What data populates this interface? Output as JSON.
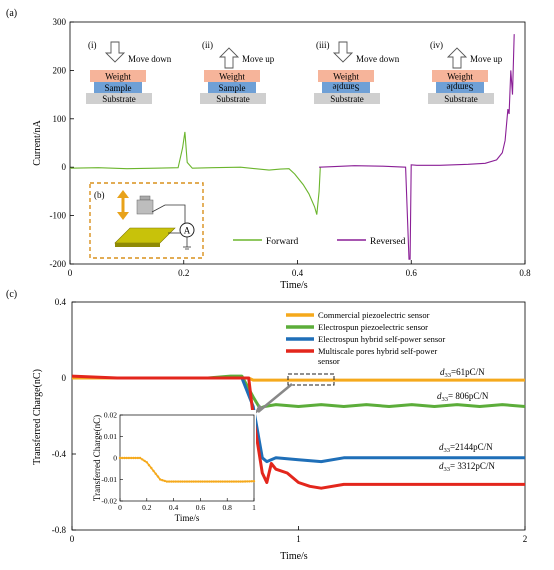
{
  "panels": {
    "a": {
      "label": "(a)"
    },
    "b": {
      "label": "(b)",
      "meter_symbol": "A"
    },
    "c": {
      "label": "(c)"
    }
  },
  "stages": [
    {
      "label": "(i)",
      "direction": "Move down",
      "arrow": "down-arrow",
      "layers": [
        "Weight",
        "Sample",
        "Substrate"
      ],
      "sample_flipped": false
    },
    {
      "label": "(ii)",
      "direction": "Move up",
      "arrow": "up-arrow",
      "layers": [
        "Weight",
        "Sample",
        "Substrate"
      ],
      "sample_flipped": false
    },
    {
      "label": "(iii)",
      "direction": "Move down",
      "arrow": "down-arrow",
      "layers": [
        "Weight",
        "Sample",
        "Substrate"
      ],
      "sample_flipped": true
    },
    {
      "label": "(iv)",
      "direction": "Move up",
      "arrow": "up-arrow",
      "layers": [
        "Weight",
        "Sample",
        "Substrate"
      ],
      "sample_flipped": true
    }
  ],
  "chart_data": [
    {
      "type": "line",
      "panel": "(a)",
      "xlabel": "Time/s",
      "ylabel": "Current/nA",
      "xlim": [
        0,
        0.8
      ],
      "ylim": [
        -200,
        300
      ],
      "xticks": [
        "0",
        "0.2",
        "0.4",
        "0.6",
        "0.8"
      ],
      "yticks": [
        "-200",
        "-100",
        "0",
        "100",
        "200",
        "300"
      ],
      "grid": false,
      "legend_position": "bottom-right",
      "colors": {
        "Forward": "#6bb52d",
        "Reversed": "#8a1f96"
      },
      "series": [
        {
          "name": "Forward",
          "x": [
            0,
            0.05,
            0.1,
            0.15,
            0.19,
            0.198,
            0.202,
            0.206,
            0.215,
            0.25,
            0.3,
            0.35,
            0.37,
            0.385,
            0.395,
            0.41,
            0.42,
            0.43,
            0.434,
            0.438,
            0.44
          ],
          "y": [
            -2,
            -1,
            -3,
            -2,
            -1,
            40,
            73,
            10,
            -2,
            -1,
            0,
            -6,
            -4,
            -3,
            -14,
            -36,
            -55,
            -82,
            -98,
            -50,
            0
          ]
        },
        {
          "name": "Reversed",
          "x": [
            0.438,
            0.46,
            0.5,
            0.55,
            0.59,
            0.596,
            0.598,
            0.6,
            0.61,
            0.65,
            0.7,
            0.73,
            0.75,
            0.76,
            0.765,
            0.77,
            0.772,
            0.775,
            0.778,
            0.781
          ],
          "y": [
            0,
            1,
            3,
            2,
            0,
            -190,
            -190,
            5,
            4,
            4,
            6,
            8,
            15,
            30,
            55,
            120,
            110,
            200,
            150,
            275
          ]
        }
      ]
    },
    {
      "type": "line",
      "panel": "(c)",
      "xlabel": "Time/s",
      "ylabel": "Transferred Charge(nC)",
      "xlim": [
        0,
        2
      ],
      "ylim": [
        -0.8,
        0.4
      ],
      "xticks": [
        "0",
        "1",
        "2"
      ],
      "yticks": [
        "-0.8",
        "-0.4",
        "0",
        "0.4"
      ],
      "grid": false,
      "legend_position": "top-right",
      "series": [
        {
          "name": "Commercial piezoelectric sensor",
          "color": "#f5a91c",
          "annotation": "61pC/N",
          "x": [
            0,
            0.3,
            0.6,
            0.78,
            0.8,
            0.9,
            1.0,
            1.5,
            2.0
          ],
          "y": [
            0.0,
            0.0,
            0.0,
            0.0,
            -0.011,
            -0.011,
            -0.011,
            -0.011,
            -0.011
          ]
        },
        {
          "name": "Electrospun piezoelectric sensor",
          "color": "#5cad3a",
          "annotation": "806pC/N",
          "x": [
            0,
            0.3,
            0.6,
            0.7,
            0.75,
            0.8,
            0.83,
            0.85,
            0.9,
            1.0,
            1.1,
            1.2,
            1.3,
            1.4,
            1.5,
            1.6,
            1.7,
            1.8,
            1.9,
            2.0
          ],
          "y": [
            0.0,
            0.0,
            0.0,
            0.01,
            0.01,
            -0.1,
            -0.16,
            -0.15,
            -0.14,
            -0.15,
            -0.14,
            -0.15,
            -0.14,
            -0.15,
            -0.14,
            -0.15,
            -0.14,
            -0.15,
            -0.14,
            -0.15
          ]
        },
        {
          "name": "Electrospun hybrid self-power sensor",
          "color": "#1f6fb8",
          "annotation": "2144pC/N",
          "x": [
            0,
            0.3,
            0.6,
            0.75,
            0.8,
            0.84,
            0.86,
            0.9,
            1.0,
            1.1,
            1.2,
            1.4,
            1.6,
            1.8,
            2.0
          ],
          "y": [
            0.0,
            0.0,
            0.0,
            0.0,
            -0.15,
            -0.42,
            -0.44,
            -0.42,
            -0.43,
            -0.44,
            -0.42,
            -0.42,
            -0.42,
            -0.42,
            -0.42
          ]
        },
        {
          "name": "Multiscale pores hybrid self-power sensor",
          "color": "#e3261c",
          "annotation": "3312pC/N",
          "x": [
            0,
            0.2,
            0.4,
            0.6,
            0.7,
            0.78,
            0.8,
            0.84,
            0.86,
            0.88,
            0.9,
            0.95,
            1.0,
            1.05,
            1.1,
            1.2,
            1.4,
            1.6,
            1.8,
            2.0
          ],
          "y": [
            0.01,
            0.0,
            0.0,
            0.0,
            0.0,
            0.0,
            -0.2,
            -0.5,
            -0.55,
            -0.45,
            -0.48,
            -0.5,
            -0.55,
            -0.57,
            -0.58,
            -0.56,
            -0.56,
            -0.56,
            -0.56,
            -0.56
          ]
        }
      ],
      "inset": {
        "type": "line",
        "xlabel": "Time/s",
        "ylabel": "Transferred Charge(nC)",
        "xlim": [
          0,
          1
        ],
        "ylim": [
          -0.02,
          0.02
        ],
        "xticks": [
          "0",
          "0.2",
          "0.4",
          "0.6",
          "0.8",
          "1"
        ],
        "yticks": [
          "0.02",
          "0.01",
          "0",
          "-0.01",
          "-0.02"
        ],
        "color": "#f5a91c",
        "x": [
          0,
          0.05,
          0.1,
          0.15,
          0.2,
          0.25,
          0.3,
          0.35,
          0.4,
          0.5,
          0.6,
          0.7,
          0.8,
          0.9,
          1.0
        ],
        "y": [
          0.0,
          0.0,
          0.0,
          0.0,
          -0.002,
          -0.006,
          -0.01,
          -0.011,
          -0.011,
          -0.011,
          -0.011,
          -0.011,
          -0.011,
          -0.011,
          -0.0108
        ]
      }
    }
  ]
}
